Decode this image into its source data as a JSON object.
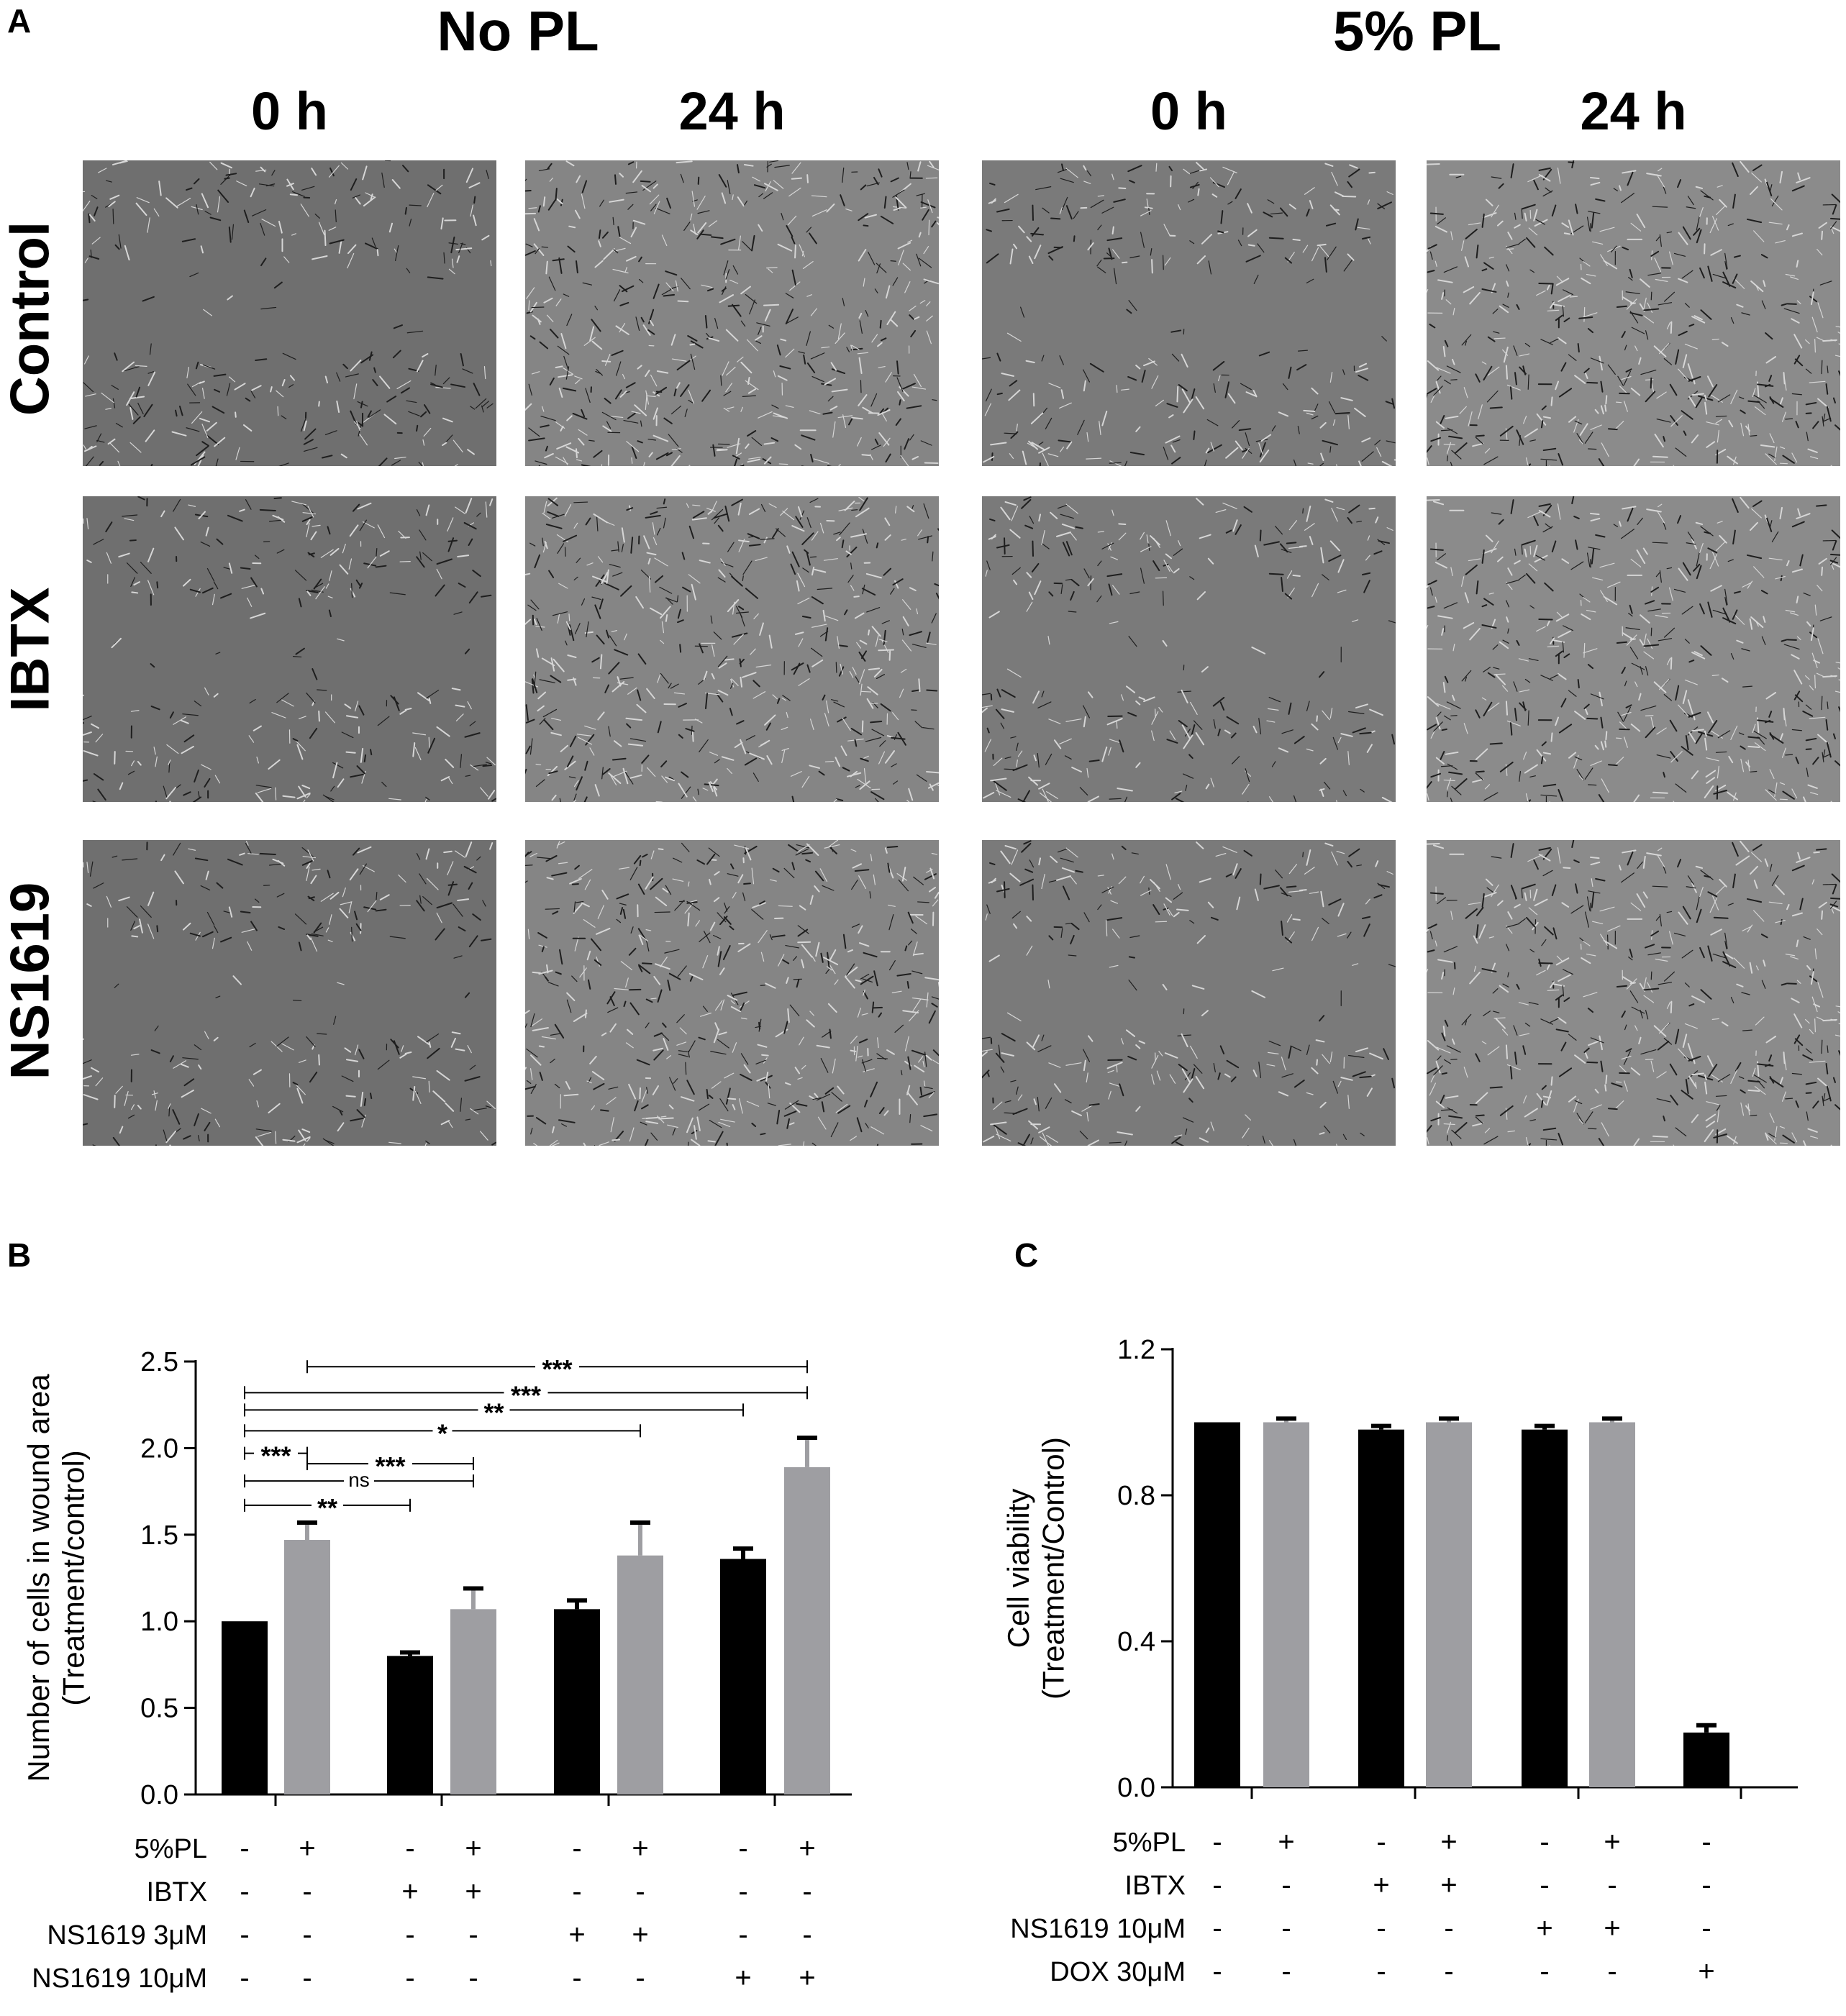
{
  "panel_a": {
    "letter": "A",
    "conditions": [
      "No PL",
      "5% PL"
    ],
    "times": [
      "0 h",
      "24 h",
      "0 h",
      "24 h"
    ],
    "rows": [
      "Control",
      "IBTX",
      "NS1619"
    ],
    "tone_colors": [
      "#6f6f6f",
      "#858585",
      "#7a7a7a",
      "#8b8b8b"
    ]
  },
  "panel_b": {
    "letter": "B"
  },
  "panel_c": {
    "letter": "C"
  },
  "chart_data": [
    {
      "panel": "B",
      "type": "bar",
      "ylabel": [
        "Number of cells in wound area",
        "(Treatment/control)"
      ],
      "ylim": [
        0,
        2.5
      ],
      "yticks": [
        "0.0",
        "0.5",
        "1.0",
        "1.5",
        "2.0",
        "2.5"
      ],
      "bars": [
        {
          "value": 1.0,
          "err": 0.0,
          "color": "#000000"
        },
        {
          "value": 1.47,
          "err": 0.1,
          "color": "#9e9ea2"
        },
        {
          "value": 0.8,
          "err": 0.02,
          "color": "#000000"
        },
        {
          "value": 1.07,
          "err": 0.12,
          "color": "#9e9ea2"
        },
        {
          "value": 1.07,
          "err": 0.05,
          "color": "#000000"
        },
        {
          "value": 1.38,
          "err": 0.19,
          "color": "#9e9ea2"
        },
        {
          "value": 1.36,
          "err": 0.06,
          "color": "#000000"
        },
        {
          "value": 1.89,
          "err": 0.17,
          "color": "#9e9ea2"
        }
      ],
      "significance": [
        {
          "from": 1,
          "to": 7,
          "y": 2.47,
          "label": "***"
        },
        {
          "from": 0,
          "to": 7,
          "y": 2.32,
          "label": "***"
        },
        {
          "from": 0,
          "to": 6,
          "y": 2.22,
          "label": "**"
        },
        {
          "from": 0,
          "to": 5,
          "y": 2.1,
          "label": "*"
        },
        {
          "from": 0,
          "to": 1,
          "y": 1.97,
          "label": "***"
        },
        {
          "from": 1,
          "to": 3,
          "y": 1.91,
          "label": "***"
        },
        {
          "from": 0,
          "to": 3,
          "y": 1.81,
          "label": "ns"
        },
        {
          "from": 0,
          "to": 2,
          "y": 1.67,
          "label": "**"
        }
      ],
      "treatment_table": [
        {
          "label": "5%PL",
          "signs": [
            "-",
            "+",
            "-",
            "+",
            "-",
            "+",
            "-",
            "+"
          ]
        },
        {
          "label": "IBTX",
          "signs": [
            "-",
            "-",
            "+",
            "+",
            "-",
            "-",
            "-",
            "-"
          ]
        },
        {
          "label": "NS1619 3μM",
          "signs": [
            "-",
            "-",
            "-",
            "-",
            "+",
            "+",
            "-",
            "-"
          ]
        },
        {
          "label": "NS1619 10μM",
          "signs": [
            "-",
            "-",
            "-",
            "-",
            "-",
            "-",
            "+",
            "+"
          ]
        }
      ]
    },
    {
      "panel": "C",
      "type": "bar",
      "ylabel": [
        "Cell viability",
        "(Treatment/Control)"
      ],
      "ylim": [
        0,
        1.2
      ],
      "yticks": [
        "0.0",
        "0.4",
        "0.8",
        "1.2"
      ],
      "bars": [
        {
          "value": 1.0,
          "err": 0.0,
          "color": "#000000"
        },
        {
          "value": 1.0,
          "err": 0.01,
          "color": "#9e9ea2"
        },
        {
          "value": 0.98,
          "err": 0.01,
          "color": "#000000"
        },
        {
          "value": 1.0,
          "err": 0.01,
          "color": "#9e9ea2"
        },
        {
          "value": 0.98,
          "err": 0.01,
          "color": "#000000"
        },
        {
          "value": 1.0,
          "err": 0.01,
          "color": "#9e9ea2"
        },
        {
          "value": 0.15,
          "err": 0.02,
          "color": "#000000"
        }
      ],
      "treatment_table": [
        {
          "label": "5%PL",
          "signs": [
            "-",
            "+",
            "-",
            "+",
            "-",
            "+",
            "-"
          ]
        },
        {
          "label": "IBTX",
          "signs": [
            "-",
            "-",
            "+",
            "+",
            "-",
            "-",
            "-"
          ]
        },
        {
          "label": "NS1619 10μM",
          "signs": [
            "-",
            "-",
            "-",
            "-",
            "+",
            "+",
            "-"
          ]
        },
        {
          "label": "DOX 30μM",
          "signs": [
            "-",
            "-",
            "-",
            "-",
            "-",
            "-",
            "+"
          ]
        }
      ]
    }
  ]
}
